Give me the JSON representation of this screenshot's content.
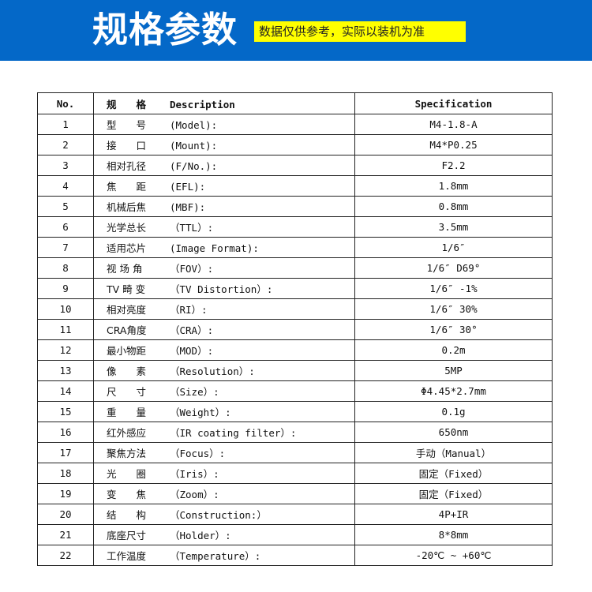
{
  "banner": {
    "title": "规格参数",
    "note": "数据仅供参考，实际以装机为准",
    "color": "#0468c8",
    "note_bg": "#ffff00"
  },
  "table": {
    "headers": {
      "no": "No.",
      "desc_cn": "规　　格",
      "desc_en": "Description",
      "spec": "Specification"
    },
    "rows": [
      {
        "no": "1",
        "cn": "型　　号",
        "en": "(Model):",
        "spec": "M4-1.8-A"
      },
      {
        "no": "2",
        "cn": "接　　口",
        "en": "(Mount):",
        "spec": "M4*P0.25"
      },
      {
        "no": "3",
        "cn": "相对孔径",
        "en": "(F/No.):",
        "spec": "F2.2"
      },
      {
        "no": "4",
        "cn": "焦　　距",
        "en": "(EFL):",
        "spec": "1.8mm"
      },
      {
        "no": "5",
        "cn": "机械后焦",
        "en": "(MBF):",
        "spec": "0.8mm"
      },
      {
        "no": "6",
        "cn": "光学总长",
        "en": "（TTL）:",
        "spec": "3.5mm"
      },
      {
        "no": "7",
        "cn": "适用芯片",
        "en": "(Image Format):",
        "spec": "1/6″"
      },
      {
        "no": "8",
        "cn": "视 场 角",
        "en": "（FOV）:",
        "spec": "1/6″ D69°"
      },
      {
        "no": "9",
        "cn": "TV 畸 变",
        "en": "（TV Distortion）:",
        "spec": "1/6″ -1%"
      },
      {
        "no": "10",
        "cn": "相对亮度",
        "en": "（RI）:",
        "spec": "1/6″ 30%"
      },
      {
        "no": "11",
        "cn": "CRA角度",
        "en": "（CRA）:",
        "spec": "1/6″ 30°"
      },
      {
        "no": "12",
        "cn": "最小物距",
        "en": "（MOD）:",
        "spec": "0.2m"
      },
      {
        "no": "13",
        "cn": "像　　素",
        "en": "（Resolution）:",
        "spec": "5MP"
      },
      {
        "no": "14",
        "cn": "尺　　寸",
        "en": "（Size）:",
        "spec": "Φ4.45*2.7mm"
      },
      {
        "no": "15",
        "cn": "重　　量",
        "en": "（Weight）:",
        "spec": "0.1g"
      },
      {
        "no": "16",
        "cn": "红外感应",
        "en": "（IR coating filter）:",
        "spec": "650nm"
      },
      {
        "no": "17",
        "cn": "聚焦方法",
        "en": "（Focus）:",
        "spec": "手动（Manual）"
      },
      {
        "no": "18",
        "cn": "光　　圈",
        "en": "（Iris）:",
        "spec": "固定（Fixed）"
      },
      {
        "no": "19",
        "cn": "变　　焦",
        "en": "（Zoom）:",
        "spec": "固定（Fixed）"
      },
      {
        "no": "20",
        "cn": "结　　构",
        "en": "（Construction:）",
        "spec": "4P+IR"
      },
      {
        "no": "21",
        "cn": "底座尺寸",
        "en": "（Holder）:",
        "spec": "8*8mm"
      },
      {
        "no": "22",
        "cn": "工作温度",
        "en": "（Temperature）:",
        "spec": "-20℃ ~ +60℃"
      }
    ]
  }
}
